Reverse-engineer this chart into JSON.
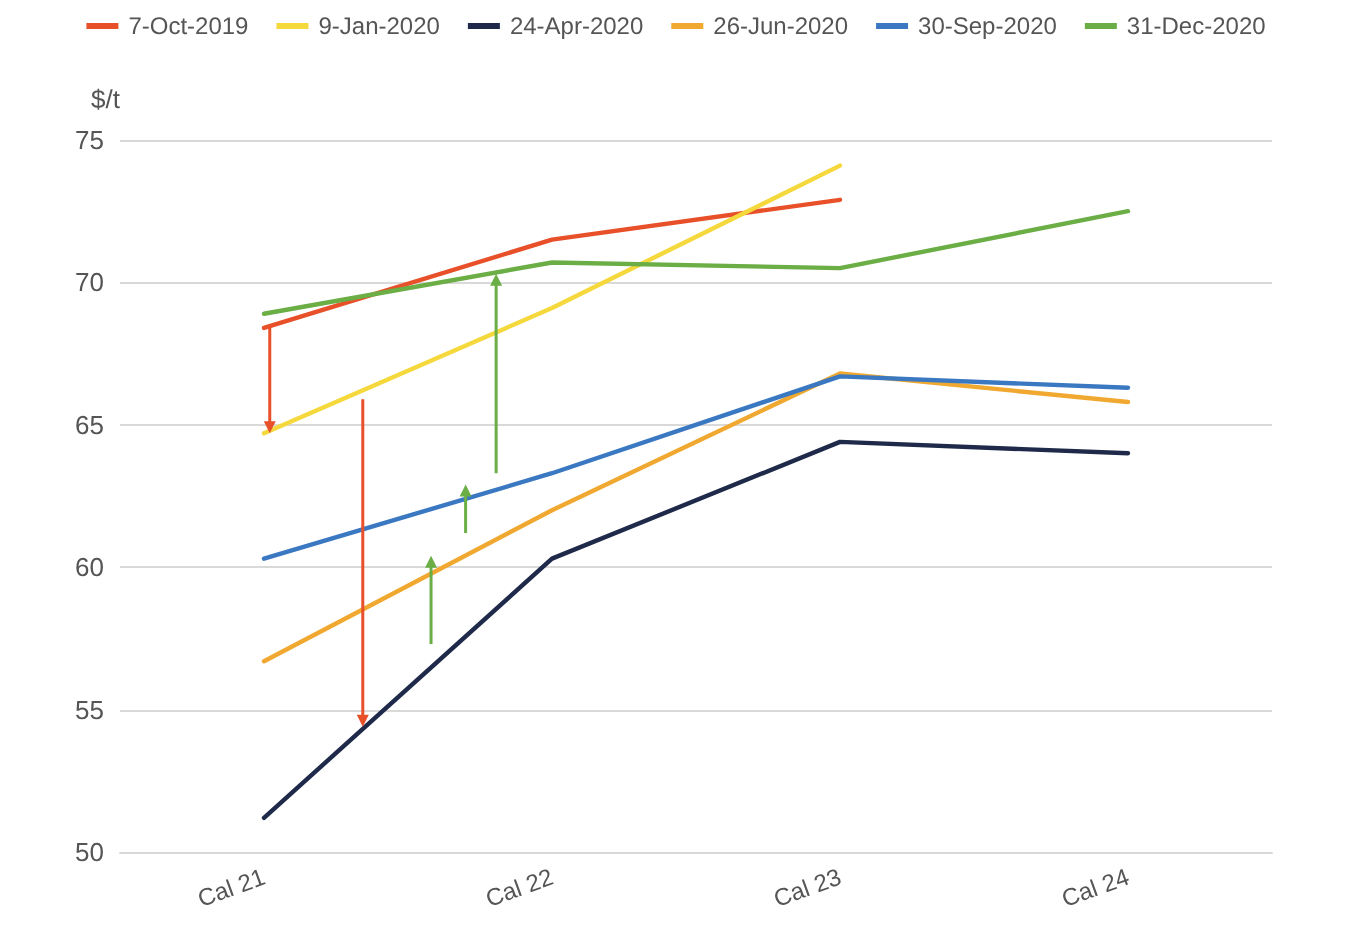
{
  "chart_data": {
    "type": "line",
    "ylabel": "$/t",
    "categories": [
      "Cal 21",
      "Cal 22",
      "Cal 23",
      "Cal 24"
    ],
    "series": [
      {
        "name": "7-Oct-2019",
        "color": "#e8502a",
        "values": [
          68.4,
          71.5,
          72.9,
          null
        ]
      },
      {
        "name": "9-Jan-2020",
        "color": "#f5d83c",
        "values": [
          64.7,
          69.1,
          74.1,
          null
        ]
      },
      {
        "name": "24-Apr-2020",
        "color": "#1f2a4a",
        "values": [
          51.2,
          60.3,
          64.4,
          64.0
        ]
      },
      {
        "name": "26-Jun-2020",
        "color": "#f0a830",
        "values": [
          56.7,
          62.0,
          66.8,
          65.8
        ]
      },
      {
        "name": "30-Sep-2020",
        "color": "#3a78c2",
        "values": [
          60.3,
          63.3,
          66.7,
          66.3
        ]
      },
      {
        "name": "31-Dec-2020",
        "color": "#6aae45",
        "values": [
          68.9,
          70.7,
          70.5,
          72.5
        ]
      }
    ],
    "ylim": [
      50,
      75
    ],
    "yticks": [
      50,
      55,
      60,
      65,
      70,
      75
    ],
    "grid": "y",
    "legend": "top",
    "marker": "none",
    "line_style": "solid"
  }
}
